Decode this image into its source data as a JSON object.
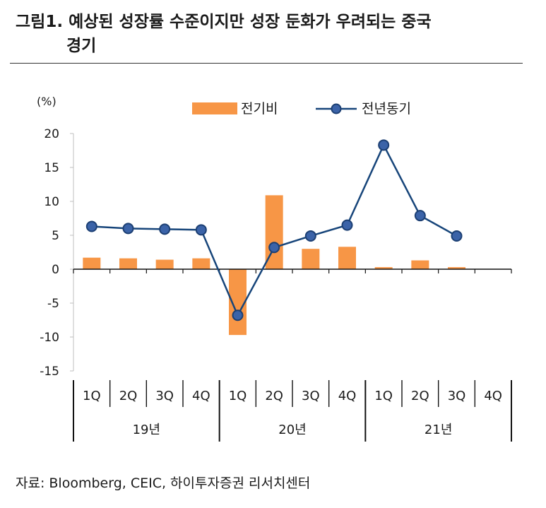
{
  "title": {
    "line1": "그림1. 예상된 성장률 수준이지만 성장 둔화가 우려되는 중국",
    "line2": "경기"
  },
  "source": "자료: Bloomberg, CEIC,  하이투자증권 리서치센터",
  "chart_data": {
    "type": "bar+line",
    "unit_label": "(%)",
    "ylim": [
      -15,
      20
    ],
    "yticks": [
      "20",
      "15",
      "10",
      "5",
      "0",
      "-5",
      "-10",
      "-15"
    ],
    "categories": [
      "1Q",
      "2Q",
      "3Q",
      "4Q",
      "1Q",
      "2Q",
      "3Q",
      "4Q",
      "1Q",
      "2Q",
      "3Q",
      "4Q"
    ],
    "groups": [
      {
        "label": "19년",
        "count": 4
      },
      {
        "label": "20년",
        "count": 4
      },
      {
        "label": "21년",
        "count": 4
      }
    ],
    "series": [
      {
        "name": "전기비",
        "type": "bar",
        "color": "#F79646",
        "values": [
          1.7,
          1.6,
          1.4,
          1.6,
          -9.7,
          10.9,
          3.0,
          3.3,
          0.3,
          1.3,
          0.3,
          null
        ]
      },
      {
        "name": "전년동기",
        "type": "line",
        "color": "#17457A",
        "marker_color": "#3B63A8",
        "values": [
          6.3,
          6.0,
          5.9,
          5.8,
          -6.8,
          3.2,
          4.9,
          6.5,
          18.3,
          7.9,
          4.9,
          null
        ]
      }
    ]
  }
}
